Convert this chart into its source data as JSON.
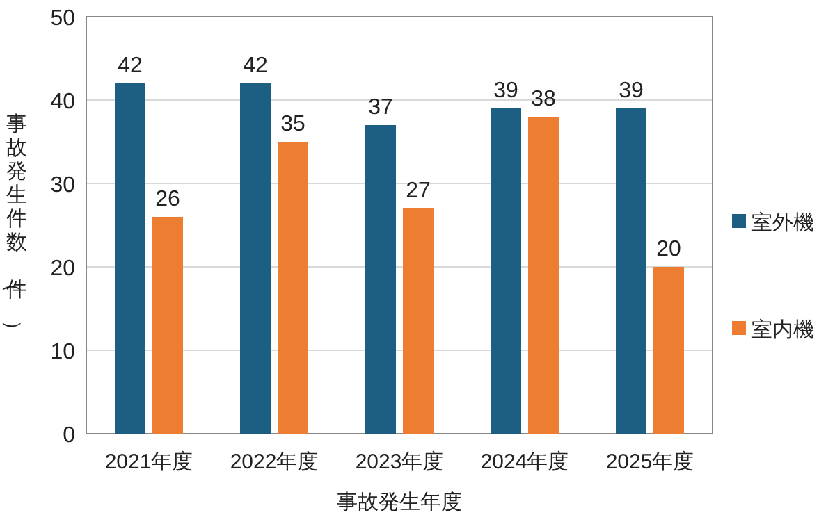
{
  "chart_data": {
    "type": "bar",
    "xlabel": "事故発生年度",
    "ylabel": "事故発生件数（件）",
    "categories": [
      "2021年度",
      "2022年度",
      "2023年度",
      "2024年度",
      "2025年度"
    ],
    "series": [
      {
        "name": "室外機",
        "color": "#1c5f82",
        "values": [
          42,
          42,
          37,
          39,
          39
        ]
      },
      {
        "name": "室内機",
        "color": "#ed7d31",
        "values": [
          26,
          35,
          27,
          38,
          20
        ]
      }
    ],
    "ylim": [
      0,
      50
    ],
    "yticks": [
      0,
      10,
      20,
      30,
      40,
      50
    ],
    "grid": "y",
    "legend": "right",
    "data_labels": true
  }
}
